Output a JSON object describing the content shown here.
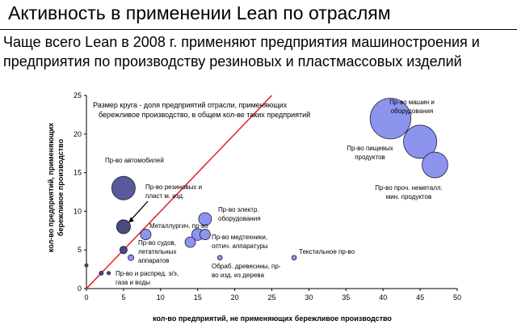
{
  "slide": {
    "title": "Активность в применении Lean по отраслям",
    "subtitle_line1": "Чаще всего Lean в 2008 г. применяют предприятия машиностроения и",
    "subtitle_line2": "предприятия по производству резиновых и пластмассовых изделий"
  },
  "chart_data": {
    "type": "scatter",
    "xlabel": "кол-во предприятий, не применяющих бережливое производство",
    "ylabel_line1": "кол-во предприятий, применяющих",
    "ylabel_line2": "бережливое производство",
    "xlim": [
      0,
      50
    ],
    "ylim": [
      0,
      25
    ],
    "x_ticks": [
      "0",
      "5",
      "10",
      "15",
      "20",
      "25",
      "30",
      "35",
      "40",
      "45",
      "50"
    ],
    "y_ticks": [
      "0",
      "5",
      "10",
      "15",
      "20",
      "25"
    ],
    "grid": false,
    "note_line1": "Размер круга - доля предприятий отрасли, применяющих",
    "note_line2": "бережливое производство, в общем кол-ве таких предприятий",
    "reference_line": {
      "from": [
        0,
        0
      ],
      "to": [
        25,
        25
      ],
      "color": "#e02020"
    },
    "points": [
      {
        "x": 41,
        "y": 22,
        "share": 30,
        "color": "#8d94ee",
        "labels": [
          "Пр-во машин и",
          "оборудования"
        ]
      },
      {
        "x": 45,
        "y": 19,
        "share": 20,
        "color": "#8d94ee",
        "labels": [
          "Пр-во пищевых",
          "продуктов"
        ]
      },
      {
        "x": 47,
        "y": 16,
        "share": 12,
        "color": "#8d94ee",
        "labels": [
          "Пр-во проч. неметалл.",
          "мин. продуктов"
        ]
      },
      {
        "x": 5,
        "y": 13,
        "share": 10,
        "color": "#5a5a9a",
        "labels": [
          "Пр-во автомобилей"
        ]
      },
      {
        "x": 5,
        "y": 8,
        "share": 3.5,
        "color": "#4a4a80",
        "labels": [
          "Пр-во резиновых и",
          "пласт м. изд."
        ]
      },
      {
        "x": 16,
        "y": 9,
        "share": 3,
        "color": "#8d94ee",
        "labels": [
          "Пр-во электр.",
          "оборудования"
        ]
      },
      {
        "x": 8,
        "y": 7,
        "share": 2,
        "color": "#8d94ee",
        "labels": [
          "Металлургич. пр-во"
        ]
      },
      {
        "x": 15,
        "y": 7,
        "share": 2.5,
        "color": "#8d94ee",
        "labels": []
      },
      {
        "x": 16,
        "y": 7,
        "share": 2,
        "color": "#8d94ee",
        "labels": []
      },
      {
        "x": 14,
        "y": 6,
        "share": 2,
        "color": "#8d94ee",
        "labels": [
          "Пр-во медтехники,",
          "оптич. аппаратуры"
        ]
      },
      {
        "x": 5,
        "y": 5,
        "share": 1,
        "color": "#4a4a80",
        "labels": [
          "Пр-во судов,",
          "летательных",
          "аппаратов"
        ]
      },
      {
        "x": 6,
        "y": 4,
        "share": 0.6,
        "color": "#8d94ee",
        "labels": []
      },
      {
        "x": 18,
        "y": 4,
        "share": 0.4,
        "color": "#8d94ee",
        "labels": [
          "Обраб. древесины, пр-",
          "во изд. из дерева"
        ]
      },
      {
        "x": 28,
        "y": 4,
        "share": 0.4,
        "color": "#8d94ee",
        "labels": [
          "Текстильное пр-во"
        ]
      },
      {
        "x": 0,
        "y": 3,
        "share": 0.2,
        "color": "#4a4a80",
        "labels": []
      },
      {
        "x": 2,
        "y": 2,
        "share": 0.3,
        "color": "#4a4a80",
        "labels": [
          "Пр-во и распред. э/э,",
          "газа и воды"
        ]
      },
      {
        "x": 3,
        "y": 2,
        "share": 0.2,
        "color": "#4a4a80",
        "labels": []
      }
    ]
  }
}
